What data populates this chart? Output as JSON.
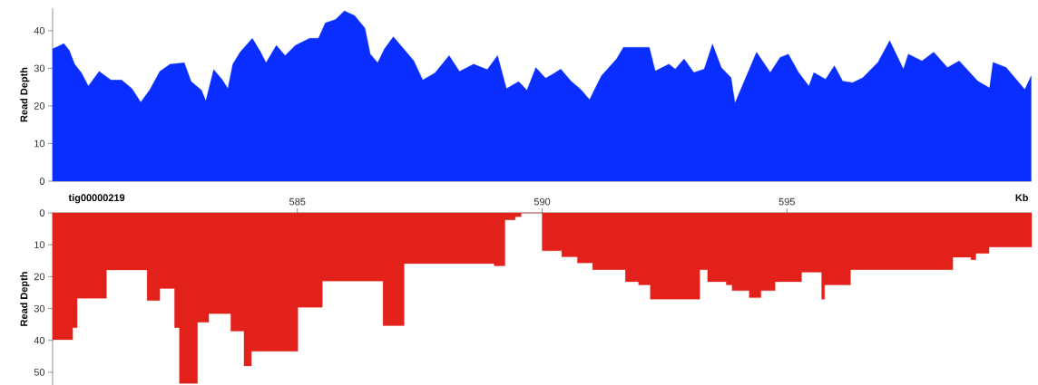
{
  "chart_data": [
    {
      "type": "area",
      "ylabel": "Read Depth",
      "xlim": [
        580,
        600
      ],
      "ylim": [
        0,
        46
      ],
      "xticks": [
        585,
        590,
        595
      ],
      "yticks": [
        0,
        10,
        20,
        30,
        40
      ],
      "tick_labels": "y",
      "series": [
        {
          "color": "#0a2eff",
          "x": [
            580.0,
            580.09,
            580.23,
            580.34,
            580.45,
            580.59,
            580.73,
            580.95,
            581.19,
            581.41,
            581.62,
            581.8,
            581.98,
            582.19,
            582.4,
            582.69,
            582.83,
            583.04,
            583.13,
            583.29,
            583.47,
            583.58,
            583.68,
            583.83,
            584.08,
            584.25,
            584.36,
            584.57,
            584.75,
            584.96,
            585.25,
            585.43,
            585.57,
            585.78,
            585.96,
            586.17,
            586.38,
            586.49,
            586.64,
            586.78,
            586.96,
            587.17,
            587.38,
            587.56,
            587.81,
            588.1,
            588.31,
            588.6,
            588.88,
            589.09,
            589.27,
            589.52,
            589.69,
            589.87,
            590.07,
            590.21,
            590.38,
            590.59,
            590.79,
            590.97,
            591.07,
            591.21,
            591.52,
            591.66,
            591.93,
            592.19,
            592.31,
            592.59,
            592.72,
            592.9,
            593.1,
            593.31,
            593.48,
            593.66,
            593.86,
            593.94,
            594.07,
            594.38,
            594.66,
            594.86,
            595.03,
            595.24,
            595.45,
            595.55,
            595.79,
            595.97,
            596.14,
            596.34,
            596.55,
            596.86,
            597.1,
            597.38,
            597.48,
            597.76,
            598.0,
            598.28,
            598.52,
            598.9,
            599.14,
            599.21,
            599.48,
            599.86,
            599.99
          ],
          "values": [
            35.2,
            35.7,
            36.6,
            34.8,
            31.1,
            28.8,
            25.3,
            29.2,
            26.9,
            26.9,
            24.6,
            21.0,
            24.2,
            29.2,
            31.1,
            31.5,
            26.5,
            24.2,
            21.4,
            29.7,
            26.9,
            24.6,
            31.1,
            34.3,
            38.0,
            34.3,
            31.5,
            36.1,
            33.4,
            36.1,
            38.0,
            38.0,
            42.1,
            43.0,
            45.3,
            44.0,
            40.7,
            33.8,
            31.5,
            35.2,
            38.4,
            35.2,
            32.0,
            26.9,
            28.8,
            33.4,
            29.2,
            31.1,
            29.7,
            33.4,
            24.6,
            26.5,
            24.2,
            30.2,
            27.4,
            28.4,
            29.8,
            26.6,
            24.4,
            21.7,
            24.4,
            28.0,
            32.5,
            35.6,
            35.6,
            35.6,
            29.3,
            31.1,
            29.8,
            32.5,
            28.9,
            29.8,
            36.5,
            30.2,
            27.5,
            20.8,
            24.8,
            34.3,
            28.9,
            32.9,
            33.8,
            28.9,
            25.3,
            28.9,
            27.1,
            30.7,
            26.6,
            26.2,
            27.5,
            31.6,
            37.4,
            29.8,
            33.8,
            32.0,
            34.3,
            30.2,
            32.0,
            26.6,
            24.8,
            31.6,
            30.2,
            24.4,
            28.0
          ]
        }
      ]
    },
    {
      "type": "area",
      "ylabel": "Read Depth",
      "xlabel": "Kb",
      "annotations": [
        "tig00000219"
      ],
      "xlim": [
        580,
        600
      ],
      "ylim": [
        54,
        0
      ],
      "xticks": [
        585,
        590,
        595
      ],
      "yticks": [
        0,
        10,
        20,
        30,
        40,
        50
      ],
      "series": [
        {
          "color": "#e3211b",
          "x": [
            580,
            580.41,
            580.41,
            580.5,
            580.5,
            581.1,
            581.1,
            581.93,
            581.93,
            582.19,
            582.19,
            582.49,
            582.49,
            582.59,
            582.59,
            582.96,
            582.96,
            583.19,
            583.19,
            583.64,
            583.64,
            583.91,
            583.91,
            584.06,
            584.06,
            585.01,
            585.01,
            585.51,
            585.51,
            586.75,
            586.75,
            587.18,
            587.18,
            589.02,
            589.02,
            589.24,
            589.24,
            589.45,
            589.45,
            589.57,
            589.57,
            590.0,
            590.0,
            590.4,
            590.4,
            590.72,
            590.72,
            591.03,
            591.03,
            591.7,
            591.7,
            591.97,
            591.97,
            592.21,
            592.21,
            593.22,
            593.22,
            593.38,
            593.38,
            593.76,
            593.76,
            593.88,
            593.88,
            594.23,
            594.23,
            594.47,
            594.47,
            594.76,
            594.76,
            595.3,
            595.3,
            595.71,
            595.71,
            595.77,
            595.77,
            596.3,
            596.3,
            598.39,
            598.39,
            598.76,
            598.76,
            598.86,
            598.86,
            599.13,
            599.13,
            600
          ],
          "values": [
            39.8,
            39.8,
            36,
            36,
            26.8,
            26.8,
            17.9,
            17.9,
            27.5,
            27.5,
            23.7,
            23.7,
            36,
            36,
            53.5,
            53.5,
            34.3,
            34.3,
            31.6,
            31.6,
            37.1,
            37.1,
            48,
            48,
            43.4,
            43.4,
            29.6,
            29.6,
            21.4,
            21.4,
            35.4,
            35.4,
            15.9,
            15.9,
            16.6,
            16.6,
            2.2,
            2.2,
            1.2,
            1.2,
            0,
            0,
            11.9,
            11.9,
            13.8,
            13.8,
            15.7,
            15.7,
            17.8,
            17.8,
            21.6,
            21.6,
            22.6,
            22.6,
            27.1,
            27.1,
            17.8,
            17.8,
            21.6,
            21.6,
            22.6,
            22.6,
            24.4,
            24.4,
            26.6,
            26.6,
            24.4,
            24.4,
            21.6,
            21.6,
            18.6,
            18.6,
            27.1,
            27.1,
            22.6,
            22.6,
            17.8,
            17.8,
            13.9,
            13.9,
            14.7,
            14.7,
            12.7,
            12.7,
            10.7,
            10.7
          ]
        }
      ]
    }
  ]
}
